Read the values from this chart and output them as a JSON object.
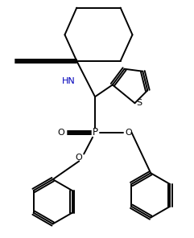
{
  "bg_color": "#ffffff",
  "line_color": "#000000",
  "hn_color": "#0000bb",
  "label_HN": "HN",
  "label_O": "O",
  "label_P": "P",
  "label_S": "S",
  "figsize": [
    2.41,
    2.96
  ],
  "dpi": 100
}
